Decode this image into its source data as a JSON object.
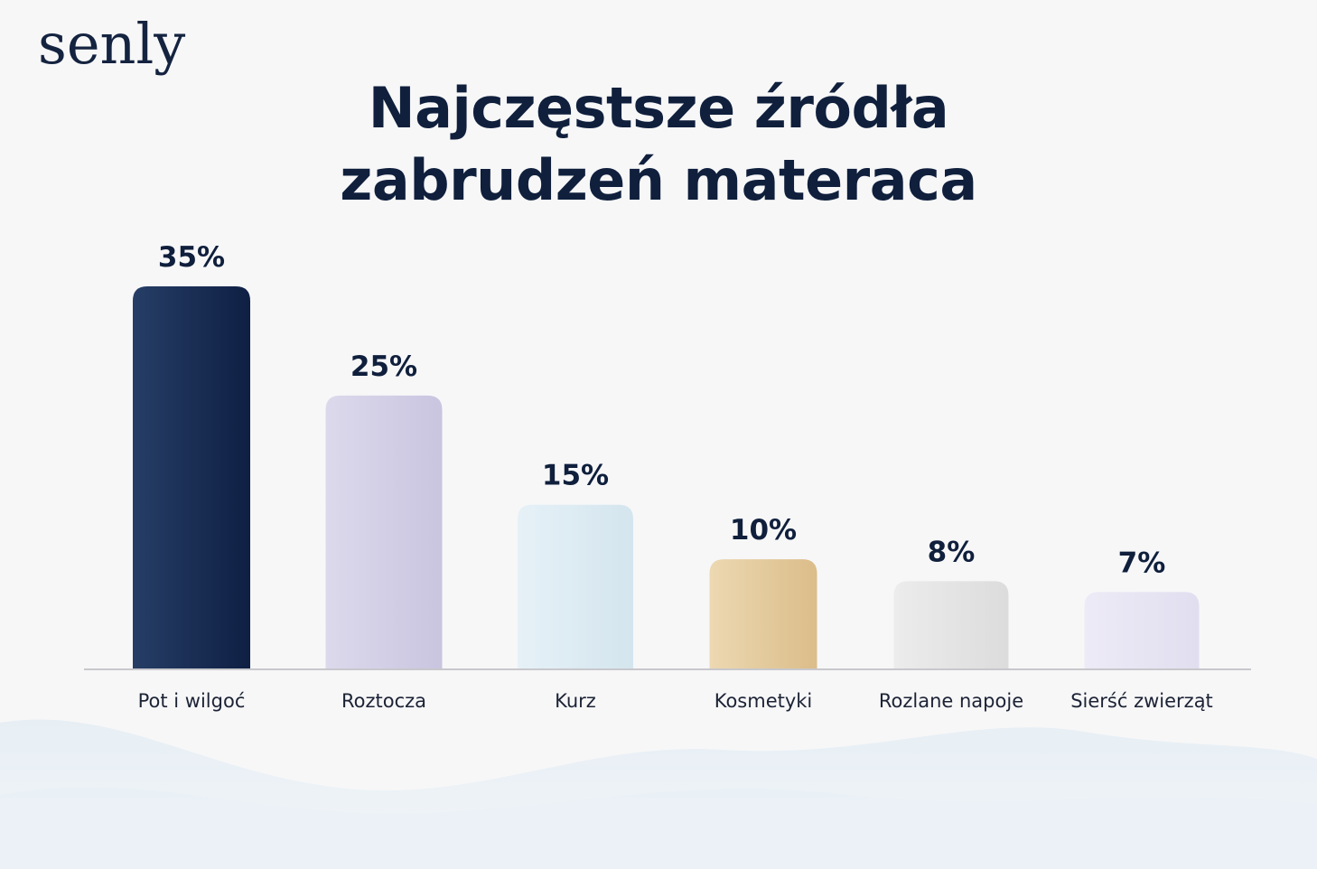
{
  "brand": {
    "logo_text": "senly"
  },
  "colors": {
    "title": "#0f1f3c",
    "label": "#1c2335",
    "baseline": "#c8c8cc",
    "bars": [
      [
        "#263e66",
        "#0f1f44"
      ],
      [
        "#dcd9ec",
        "#c9c5e0"
      ],
      [
        "#e6f1f7",
        "#d4e5ee"
      ],
      [
        "#ecd8b2",
        "#dbbd89"
      ],
      [
        "#ececec",
        "#dcdcdc"
      ],
      [
        "#edebf6",
        "#e1def0"
      ]
    ]
  },
  "chart_data": {
    "type": "bar",
    "title_lines": [
      "Najczęstsze źródła",
      "zabrudzeń materaca"
    ],
    "categories": [
      "Pot i wilgoć",
      "Roztocza",
      "Kurz",
      "Kosmetyki",
      "Rozlane napoje",
      "Sierść zwierząt"
    ],
    "values": [
      35,
      25,
      15,
      10,
      8,
      7
    ],
    "value_labels": [
      "35%",
      "25%",
      "15%",
      "10%",
      "8%",
      "7%"
    ],
    "xlabel": "",
    "ylabel": "",
    "ylim": [
      0,
      35
    ],
    "grid": false,
    "legend": "none"
  }
}
